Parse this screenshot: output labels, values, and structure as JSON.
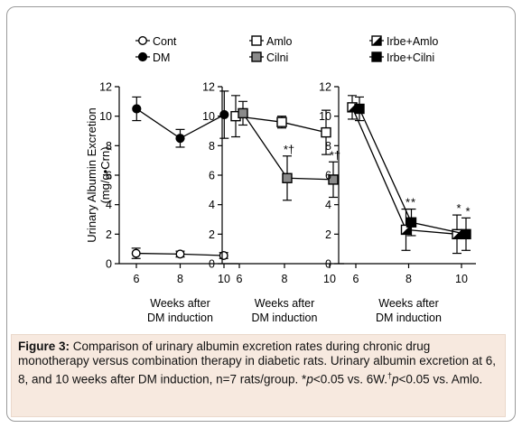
{
  "figure": {
    "y_axis_label_line1": "Urinary Albumin Excretion",
    "y_axis_label_line2": "(mg/g•Crn)",
    "x_axis_label_line1": "Weeks after",
    "x_axis_label_line2": "DM induction"
  },
  "caption": {
    "label": "Figure 3:",
    "text_1": " Comparison of urinary albumin excretion rates during chronic drug monotherapy versus combination therapy in diabetic rats. Urinary albumin excretion at 6, 8, and 10 weeks after DM induction, n=7 rats/group. *",
    "p1": "p",
    "text_2": "<0.05 vs. 6W.",
    "dagger": "†",
    "p2": "p",
    "text_3": "<0.05 vs. Amlo."
  },
  "chart_data": [
    {
      "type": "line",
      "x": [
        6,
        8,
        10
      ],
      "ylim": [
        0,
        12
      ],
      "yticks": [
        0,
        2,
        4,
        6,
        8,
        10,
        12
      ],
      "xlabel": "Weeks after DM induction",
      "ylabel": "Urinary Albumin Excretion (mg/g•Crn)",
      "legend_position": "top",
      "series": [
        {
          "name": "Cont",
          "marker": "open-circle",
          "values": [
            0.7,
            0.65,
            0.55
          ],
          "errors": [
            0.35,
            0.2,
            0.2
          ],
          "annotations": [
            "",
            "",
            ""
          ]
        },
        {
          "name": "DM",
          "marker": "filled-circle",
          "values": [
            10.5,
            8.5,
            10.1
          ],
          "errors": [
            0.8,
            0.6,
            1.6
          ],
          "annotations": [
            "",
            "",
            ""
          ]
        }
      ]
    },
    {
      "type": "line",
      "x": [
        6,
        8,
        10
      ],
      "ylim": [
        0,
        12
      ],
      "yticks": [
        0,
        2,
        4,
        6,
        8,
        10,
        12
      ],
      "xlabel": "Weeks after DM induction",
      "legend_position": "top",
      "series": [
        {
          "name": "Amlo",
          "marker": "open-square",
          "values": [
            10.0,
            9.6,
            8.9
          ],
          "errors": [
            1.4,
            0.4,
            1.5
          ],
          "annotations": [
            "",
            "",
            ""
          ]
        },
        {
          "name": "Cilni",
          "marker": "gray-square",
          "values": [
            10.2,
            5.8,
            5.7
          ],
          "errors": [
            0.8,
            1.5,
            1.2
          ],
          "annotations": [
            "",
            "*†",
            "*†"
          ]
        }
      ]
    },
    {
      "type": "line",
      "x": [
        6,
        8,
        10
      ],
      "ylim": [
        0,
        12
      ],
      "yticks": [
        0,
        2,
        4,
        6,
        8,
        10,
        12
      ],
      "xlabel": "Weeks after DM induction",
      "legend_position": "top",
      "series": [
        {
          "name": "Irbe+Amlo",
          "marker": "half-square",
          "values": [
            10.6,
            2.3,
            2.0
          ],
          "errors": [
            0.8,
            1.4,
            1.3
          ],
          "annotations": [
            "",
            "*",
            "*"
          ]
        },
        {
          "name": "Irbe+Cilni",
          "marker": "filled-square",
          "values": [
            10.5,
            2.8,
            2.0
          ],
          "errors": [
            0.8,
            0.9,
            1.1
          ],
          "annotations": [
            "",
            "*",
            "*"
          ]
        }
      ]
    }
  ]
}
